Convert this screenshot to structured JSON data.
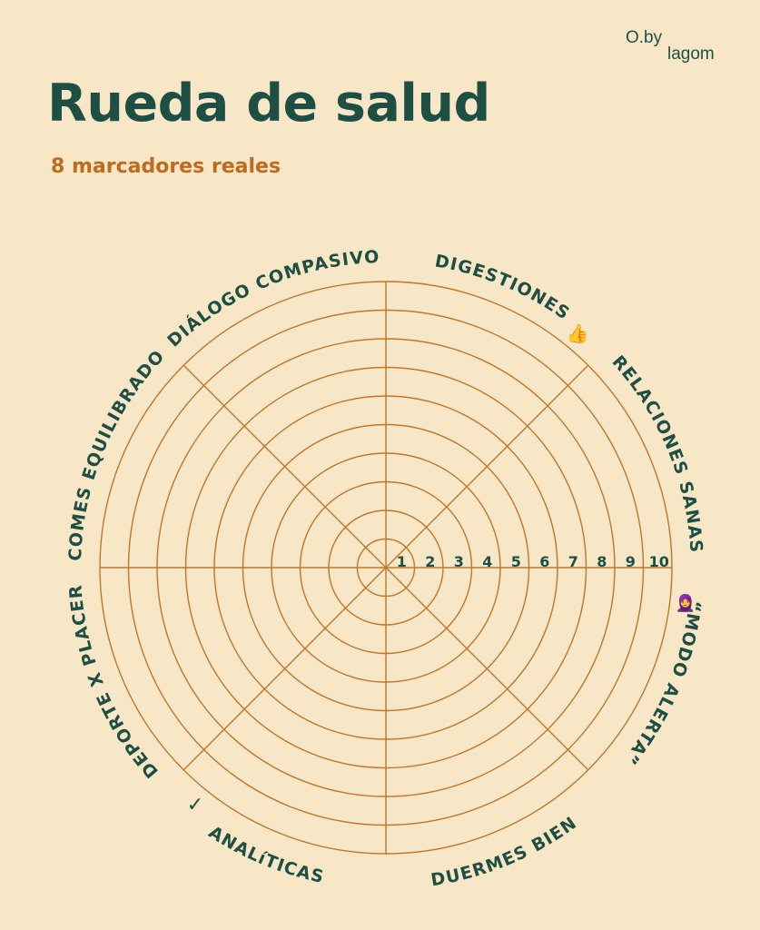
{
  "brand": {
    "part1": "O.by",
    "part2": "lagom"
  },
  "title": "Rueda de salud",
  "subtitle": "8 marcadores reales",
  "scale": [
    "1",
    "2",
    "3",
    "4",
    "5",
    "6",
    "7",
    "8",
    "9",
    "10"
  ],
  "segments": [
    {
      "label": "DIGESTIONES",
      "emoji": "👍"
    },
    {
      "label": "RELACIONES SANAS",
      "emoji": ""
    },
    {
      "label": "“MODO ALERTA”",
      "emoji": "🧕"
    },
    {
      "label": "DUERMES BIEN",
      "emoji": ""
    },
    {
      "label": "ANALíTICAS",
      "emoji": "✓"
    },
    {
      "label": "DEPORTE X PLACER",
      "emoji": ""
    },
    {
      "label": "COMES EQUILIBRADO",
      "emoji": ""
    },
    {
      "label": "DIÁLOGO COMPASIVO",
      "emoji": ""
    }
  ],
  "colors": {
    "lines": "#c1762a",
    "text": "#1e4f45",
    "accent": "#bf6b1f",
    "background": "#f7e7c6"
  }
}
